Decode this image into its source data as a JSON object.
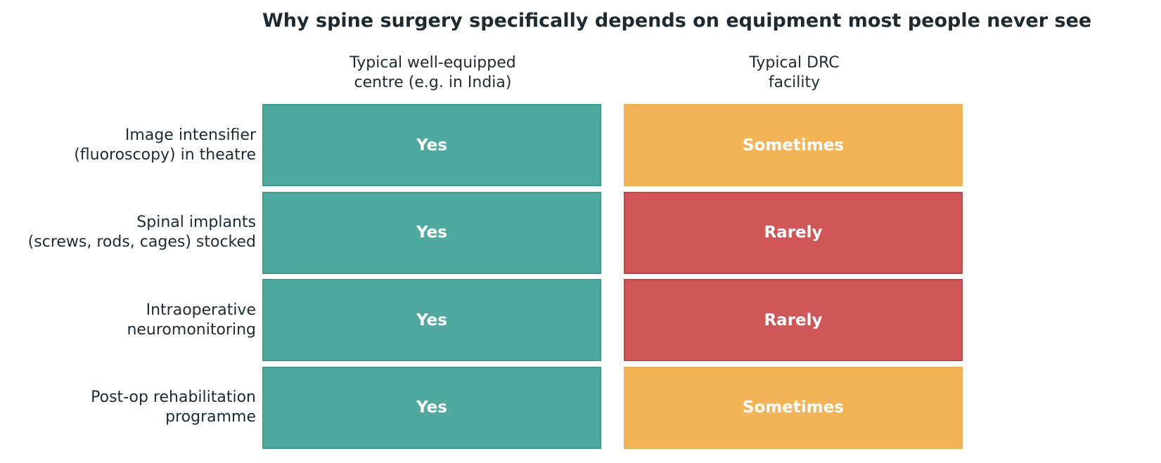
{
  "chart_data": {
    "type": "table",
    "title": "Why spine surgery specifically depends on equipment most people never see",
    "columns": [
      "Typical well-equipped\ncentre (e.g. in India)",
      "Typical DRC\nfacility"
    ],
    "rows": [
      "Image intensifier\n(fluoroscopy) in theatre",
      "Spinal implants\n(screws, rods, cages) stocked",
      "Intraoperative\nneuromonitoring",
      "Post-op rehabilitation\nprogramme"
    ],
    "cells": [
      [
        "Yes",
        "Sometimes"
      ],
      [
        "Yes",
        "Rarely"
      ],
      [
        "Yes",
        "Rarely"
      ],
      [
        "Yes",
        "Sometimes"
      ]
    ],
    "colors": {
      "Yes": "#4ea99f",
      "Sometimes": "#f2b457",
      "Rarely": "#d05658"
    },
    "border_colors": {
      "Yes": "#3d9c90",
      "Sometimes": "#f0b050",
      "Rarely": "#c84346"
    }
  }
}
